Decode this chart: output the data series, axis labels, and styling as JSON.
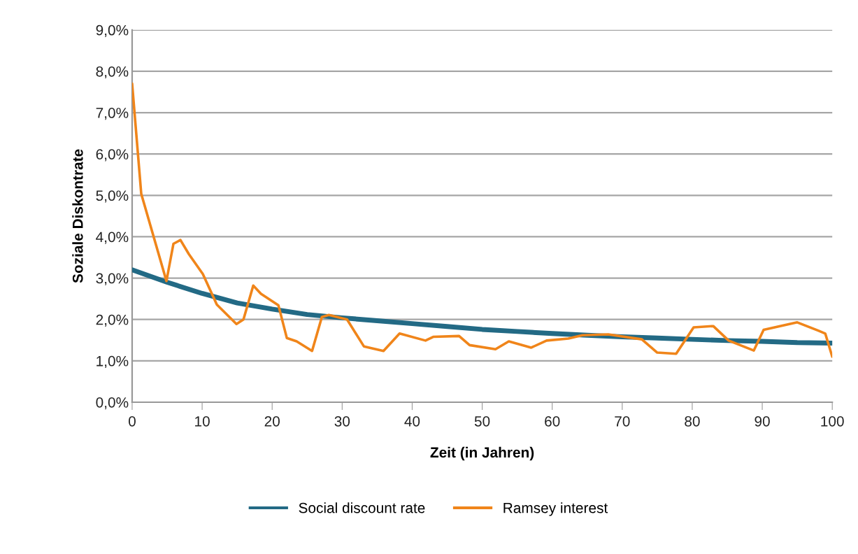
{
  "chart_data": {
    "type": "line",
    "xlabel": "Zeit (in Jahren)",
    "ylabel": "Soziale Diskontrate",
    "xlim": [
      0,
      100
    ],
    "xticks": [
      0,
      10,
      20,
      30,
      40,
      50,
      60,
      70,
      80,
      90,
      100
    ],
    "ylim": [
      0,
      9
    ],
    "yticks": [
      {
        "value": 0,
        "label": "0,0%"
      },
      {
        "value": 1,
        "label": "1,0%"
      },
      {
        "value": 2,
        "label": "2,0%"
      },
      {
        "value": 3,
        "label": "3,0%"
      },
      {
        "value": 4,
        "label": "4,0%"
      },
      {
        "value": 5,
        "label": "5,0%"
      },
      {
        "value": 6,
        "label": "6,0%"
      },
      {
        "value": 7,
        "label": "7,0%"
      },
      {
        "value": 8,
        "label": "8,0%"
      },
      {
        "value": 9,
        "label": "9,0%"
      }
    ],
    "grid": "y",
    "legend": "bottom",
    "marker": "none",
    "line_style": "solid",
    "series": [
      {
        "name": "Social discount rate",
        "color": "#236a85",
        "x": [
          0,
          5,
          10,
          15,
          20,
          25,
          30,
          35,
          40,
          45,
          50,
          55,
          60,
          65,
          70,
          75,
          80,
          85,
          90,
          95,
          100
        ],
        "values": [
          3.2,
          2.9,
          2.63,
          2.4,
          2.25,
          2.12,
          2.04,
          1.97,
          1.9,
          1.83,
          1.76,
          1.71,
          1.66,
          1.62,
          1.58,
          1.55,
          1.52,
          1.49,
          1.47,
          1.44,
          1.43
        ]
      },
      {
        "name": "Ramsey interest",
        "color": "#f0851a",
        "x": [
          0,
          1.3,
          4.9,
          5.9,
          6.9,
          8.1,
          10.1,
          12.1,
          14.9,
          15.9,
          17.3,
          18.4,
          20.9,
          22.1,
          23.5,
          25.7,
          27.1,
          28.1,
          30.7,
          33.1,
          35.9,
          38.2,
          41.9,
          43.0,
          46.7,
          48.2,
          51.9,
          53.8,
          57.0,
          59.2,
          62.3,
          64.3,
          68.0,
          72.8,
          75.0,
          77.7,
          80.2,
          83.0,
          85.2,
          88.8,
          90.2,
          95.0,
          98.0,
          99.0,
          100
        ],
        "values": [
          7.7,
          5.04,
          2.93,
          3.83,
          3.92,
          3.58,
          3.1,
          2.36,
          1.89,
          2.0,
          2.82,
          2.62,
          2.34,
          1.55,
          1.47,
          1.24,
          2.06,
          2.11,
          2.0,
          1.35,
          1.24,
          1.66,
          1.49,
          1.58,
          1.6,
          1.38,
          1.28,
          1.47,
          1.32,
          1.49,
          1.54,
          1.62,
          1.64,
          1.52,
          1.2,
          1.17,
          1.81,
          1.84,
          1.49,
          1.25,
          1.75,
          1.93,
          1.73,
          1.66,
          1.1
        ]
      }
    ]
  }
}
